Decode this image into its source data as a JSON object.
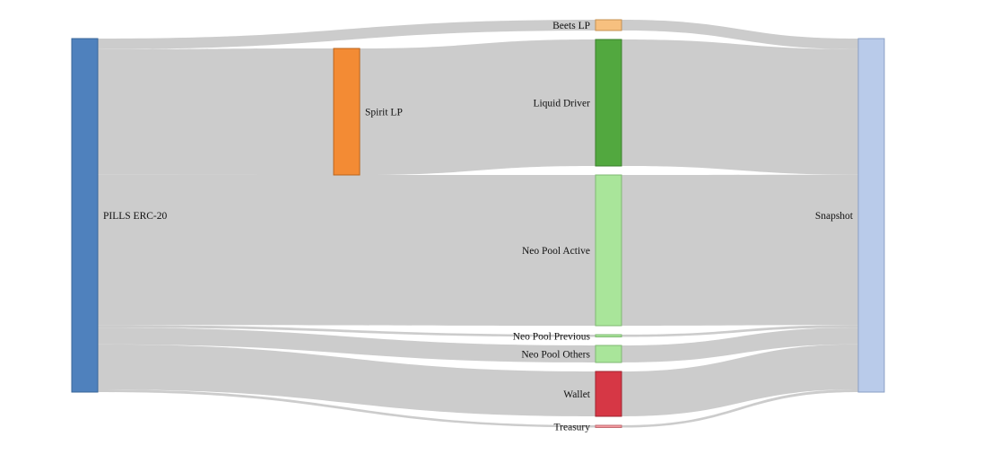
{
  "chart_data": {
    "type": "sankey",
    "nodes": [
      {
        "id": "pills",
        "label": "PILLS ERC-20",
        "color": "#4f81bd",
        "stroke": "#3a6699"
      },
      {
        "id": "spirit",
        "label": "Spirit LP",
        "color": "#f38b34",
        "stroke": "#b8631d"
      },
      {
        "id": "beets",
        "label": "Beets LP",
        "color": "#f7c07f",
        "stroke": "#c49052"
      },
      {
        "id": "liquid",
        "label": "Liquid Driver",
        "color": "#52a83f",
        "stroke": "#3b7f2c"
      },
      {
        "id": "neo_active",
        "label": "Neo Pool Active",
        "color": "#a9e59a",
        "stroke": "#7fb873"
      },
      {
        "id": "neo_prev",
        "label": "Neo Pool Previous",
        "color": "#a9e59a",
        "stroke": "#7fb873"
      },
      {
        "id": "neo_others",
        "label": "Neo Pool Others",
        "color": "#a9e59a",
        "stroke": "#7fb873"
      },
      {
        "id": "wallet",
        "label": "Wallet",
        "color": "#d63745",
        "stroke": "#9e2631"
      },
      {
        "id": "treasury",
        "label": "Treasury",
        "color": "#f49aa0",
        "stroke": "#c26d73"
      },
      {
        "id": "snapshot",
        "label": "Snapshot",
        "color": "#b9cbea",
        "stroke": "#8a9fc4"
      }
    ],
    "links": [
      {
        "source": "pills",
        "target": "beets",
        "value": 1.2
      },
      {
        "source": "pills",
        "target": "spirit",
        "value": 14.2
      },
      {
        "source": "spirit",
        "target": "liquid",
        "value": 14.2
      },
      {
        "source": "pills",
        "target": "neo_active",
        "value": 17
      },
      {
        "source": "pills",
        "target": "neo_prev",
        "value": 0.3
      },
      {
        "source": "pills",
        "target": "neo_others",
        "value": 1.9
      },
      {
        "source": "pills",
        "target": "wallet",
        "value": 5.1
      },
      {
        "source": "pills",
        "target": "treasury",
        "value": 0.3
      },
      {
        "source": "beets",
        "target": "snapshot",
        "value": 1.2
      },
      {
        "source": "liquid",
        "target": "snapshot",
        "value": 14.2
      },
      {
        "source": "neo_active",
        "target": "snapshot",
        "value": 17
      },
      {
        "source": "neo_prev",
        "target": "snapshot",
        "value": 0.3
      },
      {
        "source": "neo_others",
        "target": "snapshot",
        "value": 1.9
      },
      {
        "source": "wallet",
        "target": "snapshot",
        "value": 5.1
      },
      {
        "source": "treasury",
        "target": "snapshot",
        "value": 0.3
      }
    ]
  }
}
